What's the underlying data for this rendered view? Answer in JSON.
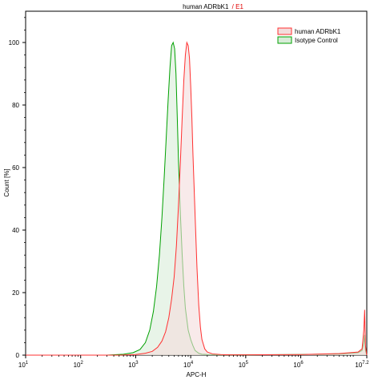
{
  "chart_data": {
    "type": "area",
    "title": "human ADRbK1",
    "title_suffix_separator": "/",
    "title_suffix": "E1",
    "title_suffix_color": "#e00000",
    "xlabel": "APC-H",
    "ylabel": "Count [%]",
    "x_scale": "log",
    "xlim": [
      10,
      15848931.9
    ],
    "ylim": [
      0,
      110
    ],
    "x_ticks": [
      {
        "value": 10,
        "base": "10",
        "exp": "1"
      },
      {
        "value": 100,
        "base": "10",
        "exp": "2"
      },
      {
        "value": 1000,
        "base": "10",
        "exp": "3"
      },
      {
        "value": 10000,
        "base": "10",
        "exp": "4"
      },
      {
        "value": 100000,
        "base": "10",
        "exp": "5"
      },
      {
        "value": 1000000,
        "base": "10",
        "exp": "6"
      },
      {
        "value": 15848931.9,
        "base": "10",
        "exp": "7.2"
      }
    ],
    "y_ticks": [
      "0",
      "20",
      "40",
      "60",
      "80",
      "100"
    ],
    "legend_position": "top-right",
    "series": [
      {
        "name": "human ADRbK1",
        "stroke": "#ff3030",
        "fill": "#f3dcdc",
        "x": [
          10,
          500,
          1000,
          1500,
          2000,
          2500,
          3000,
          3500,
          4000,
          4500,
          5000,
          5500,
          6000,
          6500,
          7000,
          7500,
          8000,
          8500,
          9000,
          9500,
          10000,
          10500,
          11000,
          12000,
          13000,
          14000,
          15000,
          16000,
          18000,
          20000,
          25000,
          35000,
          50000,
          100000,
          1000000,
          5000000,
          11000000,
          13000000,
          14000000,
          14500000,
          15000000,
          15848931.9
        ],
        "y": [
          0,
          0,
          0.2,
          0.6,
          1.2,
          2.5,
          4.5,
          7.5,
          12,
          18,
          25,
          35,
          48,
          62,
          76,
          88,
          96,
          100,
          99,
          95,
          86,
          76,
          64,
          45,
          28,
          16,
          9,
          5,
          2,
          1,
          0.4,
          0.2,
          0.1,
          0.1,
          0.2,
          0.5,
          1,
          2,
          8,
          14.5,
          3,
          0
        ]
      },
      {
        "name": "Isotype Control",
        "stroke": "#00a000",
        "fill": "#d8ecd8",
        "x": [
          10,
          300,
          600,
          900,
          1200,
          1500,
          1800,
          2100,
          2400,
          2700,
          3000,
          3300,
          3600,
          3900,
          4200,
          4500,
          4800,
          5100,
          5400,
          5700,
          6000,
          6500,
          7000,
          7500,
          8000,
          9000,
          10000,
          11000,
          12000,
          14000,
          16000,
          20000,
          30000,
          50000,
          100000,
          1000000,
          5000000,
          11000000,
          13000000,
          14000000,
          14500000,
          15000000,
          15848931.9
        ],
        "y": [
          0,
          0,
          0.3,
          0.8,
          1.8,
          4,
          8,
          14,
          22,
          32,
          44,
          57,
          70,
          82,
          92,
          99,
          100,
          98,
          90,
          76,
          62,
          45,
          32,
          22,
          15,
          8,
          5,
          3,
          1.5,
          0.6,
          0.3,
          0.2,
          0.1,
          0.1,
          0.1,
          0.2,
          0.4,
          0.8,
          1.5,
          4,
          6.5,
          1.5,
          0
        ]
      }
    ]
  }
}
